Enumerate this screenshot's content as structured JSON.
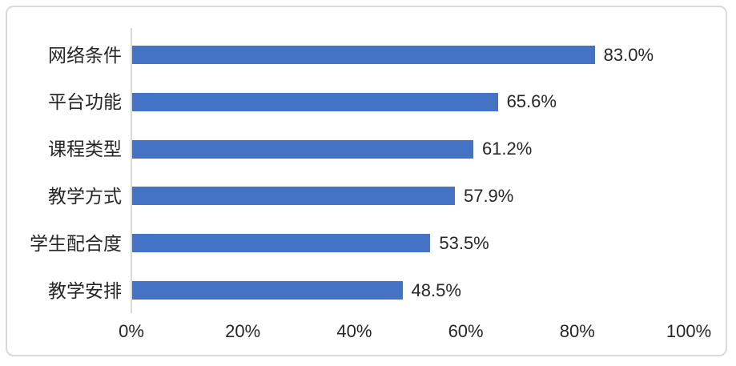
{
  "chart_data": {
    "type": "bar",
    "orientation": "horizontal",
    "title": "",
    "categories": [
      "网络条件",
      "平台功能",
      "课程类型",
      "教学方式",
      "学生配合度",
      "教学安排"
    ],
    "values": [
      83.0,
      65.6,
      61.2,
      57.9,
      53.5,
      48.5
    ],
    "value_labels": [
      "83.0%",
      "65.6%",
      "61.2%",
      "57.9%",
      "53.5%",
      "48.5%"
    ],
    "x_ticks": [
      "0%",
      "20%",
      "40%",
      "60%",
      "80%",
      "100%"
    ],
    "x_tick_values": [
      0,
      20,
      40,
      60,
      80,
      100
    ],
    "xlim": [
      0,
      100
    ],
    "xlabel": "",
    "ylabel": "",
    "grid": false,
    "legend": false,
    "colors": {
      "bar": "#4472C4",
      "axis_line": "#D9D9D9",
      "frame_border": "#D9D9D9",
      "text": "#262626",
      "background": "#FFFFFF"
    }
  }
}
